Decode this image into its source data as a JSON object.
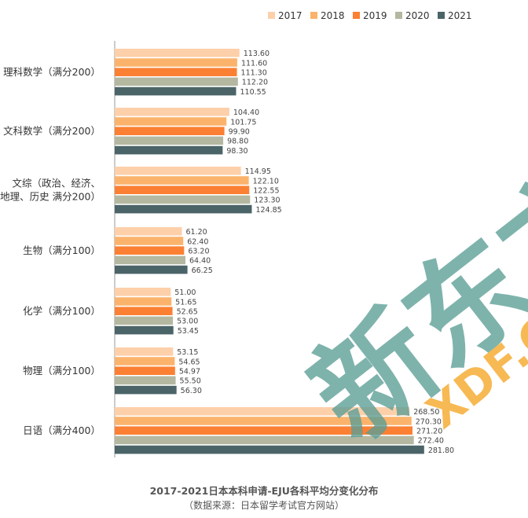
{
  "chart_data": {
    "type": "bar",
    "orientation": "horizontal",
    "categories": [
      [
        "理科数学（满分200）"
      ],
      [
        "文科数学（满分200）"
      ],
      [
        "文综（政治、经济、",
        "地理、历史 满分200）"
      ],
      [
        "生物（满分100）"
      ],
      [
        "化学（满分100）"
      ],
      [
        "物理（满分100）"
      ],
      [
        "日语（满分400）"
      ]
    ],
    "series": [
      {
        "name": "2017",
        "color": "#fdd0aa",
        "values": [
          113.6,
          104.4,
          114.95,
          61.2,
          51.0,
          53.15,
          268.5
        ]
      },
      {
        "name": "2018",
        "color": "#fbb36c",
        "values": [
          111.6,
          101.75,
          122.1,
          62.4,
          51.65,
          54.65,
          270.3
        ]
      },
      {
        "name": "2019",
        "color": "#fb8033",
        "values": [
          111.3,
          99.9,
          122.55,
          63.2,
          52.65,
          54.97,
          271.2
        ]
      },
      {
        "name": "2020",
        "color": "#b4b8a0",
        "values": [
          112.2,
          98.8,
          123.3,
          64.4,
          53.0,
          55.5,
          272.4
        ]
      },
      {
        "name": "2021",
        "color": "#4b6468",
        "values": [
          110.55,
          98.3,
          124.85,
          66.25,
          53.45,
          56.3,
          281.8
        ]
      }
    ],
    "value_labels": [
      [
        "113.60",
        "104.40",
        "114.95",
        "61.20",
        "51.00",
        "53.15",
        "268.50"
      ],
      [
        "111.60",
        "101.75",
        "122.10",
        "62.40",
        "51.65",
        "54.65",
        "270.30"
      ],
      [
        "111.30",
        "99.90",
        "122.55",
        "63.20",
        "52.65",
        "54.97",
        "271.20"
      ],
      [
        "112.20",
        "98.80",
        "123.30",
        "64.40",
        "53.00",
        "55.50",
        "272.40"
      ],
      [
        "110.55",
        "98.30",
        "124.85",
        "66.25",
        "53.45",
        "56.30",
        "281.80"
      ]
    ],
    "title": "2017-2021日本本科申请-EJU各科平均分变化分布",
    "subtitle": "（数据来源：日本留学考试官方网站）",
    "xlim": [
      0,
      300
    ],
    "grid": false,
    "legend": "top-right"
  },
  "watermark": {
    "text": "新东方",
    "sub": "XDF.C",
    "color": "#5a9e96",
    "accent": "#f5a623"
  }
}
